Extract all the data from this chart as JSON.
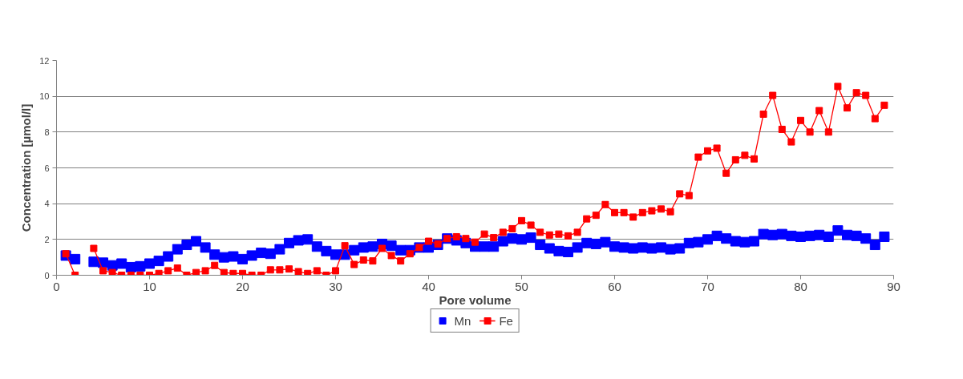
{
  "chart_data": {
    "type": "line",
    "xlabel": "Pore volume",
    "ylabel": "Concentration [µmol/l]",
    "x": [
      1,
      2,
      3,
      4,
      5,
      6,
      7,
      8,
      9,
      10,
      11,
      12,
      13,
      14,
      15,
      16,
      17,
      18,
      19,
      20,
      21,
      22,
      23,
      24,
      25,
      26,
      27,
      28,
      29,
      30,
      31,
      32,
      33,
      34,
      35,
      36,
      37,
      38,
      39,
      40,
      41,
      42,
      43,
      44,
      45,
      46,
      47,
      48,
      49,
      50,
      51,
      52,
      53,
      54,
      55,
      56,
      57,
      58,
      59,
      60,
      61,
      62,
      63,
      64,
      65,
      66,
      67,
      68,
      69,
      70,
      71,
      72,
      73,
      74,
      75,
      76,
      77,
      78,
      79,
      80,
      81,
      82,
      83,
      84,
      85,
      86,
      87,
      88,
      89
    ],
    "series": [
      {
        "name": "Mn",
        "type": "scatter",
        "marker": "square",
        "color": "#0000ff",
        "values": [
          1.1,
          0.9,
          null,
          0.75,
          0.7,
          0.55,
          0.65,
          0.45,
          0.5,
          0.65,
          0.8,
          1.05,
          1.45,
          1.7,
          1.9,
          1.55,
          1.15,
          1.0,
          1.05,
          0.9,
          1.1,
          1.25,
          1.2,
          1.45,
          1.8,
          1.95,
          2.0,
          1.6,
          1.35,
          1.15,
          1.15,
          1.4,
          1.55,
          1.6,
          1.75,
          1.65,
          1.4,
          1.4,
          1.55,
          1.55,
          1.7,
          2.05,
          1.95,
          1.8,
          1.6,
          1.6,
          1.6,
          1.9,
          2.05,
          2.0,
          2.1,
          1.7,
          1.5,
          1.35,
          1.3,
          1.55,
          1.8,
          1.75,
          1.85,
          1.6,
          1.55,
          1.5,
          1.55,
          1.5,
          1.55,
          1.45,
          1.5,
          1.8,
          1.85,
          2.0,
          2.2,
          2.05,
          1.9,
          1.85,
          1.9,
          2.3,
          2.25,
          2.3,
          2.2,
          2.15,
          2.2,
          2.25,
          2.15,
          2.5,
          2.25,
          2.2,
          2.05,
          1.7,
          2.15
        ]
      },
      {
        "name": "Fe",
        "type": "line",
        "marker": "square",
        "color": "#ff0000",
        "values": [
          1.2,
          0.0,
          null,
          1.5,
          0.25,
          0.15,
          0.0,
          0.0,
          0.0,
          0.0,
          0.1,
          0.25,
          0.4,
          0.0,
          0.15,
          0.25,
          0.55,
          0.15,
          0.1,
          0.1,
          0.0,
          0.0,
          0.3,
          0.3,
          0.35,
          0.2,
          0.1,
          0.25,
          0.0,
          0.25,
          1.65,
          0.6,
          0.85,
          0.8,
          1.5,
          1.1,
          0.8,
          1.2,
          1.55,
          1.9,
          1.75,
          2.05,
          2.15,
          2.05,
          1.85,
          2.3,
          2.1,
          2.4,
          2.6,
          3.05,
          2.8,
          2.4,
          2.25,
          2.3,
          2.2,
          2.4,
          3.15,
          3.35,
          3.95,
          3.5,
          3.5,
          3.25,
          3.5,
          3.6,
          3.7,
          3.55,
          4.55,
          4.45,
          6.6,
          6.95,
          7.1,
          5.7,
          6.45,
          6.7,
          6.5,
          9.0,
          10.05,
          8.15,
          7.45,
          8.65,
          8.0,
          9.2,
          8.0,
          10.55,
          9.35,
          10.2,
          10.05,
          8.75,
          9.5
        ]
      }
    ],
    "xlim": [
      0,
      90
    ],
    "xticks": [
      0,
      10,
      20,
      30,
      40,
      50,
      60,
      70,
      80,
      90
    ],
    "ylim": [
      0,
      12
    ],
    "yticks": [
      0,
      2,
      4,
      6,
      8,
      10,
      12
    ],
    "grid": "y",
    "legend": "bottom",
    "line_style": "solid"
  }
}
